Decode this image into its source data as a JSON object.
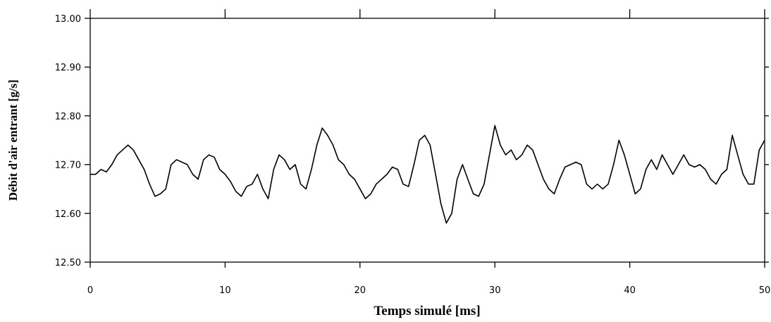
{
  "chart_data": {
    "type": "line",
    "title": "",
    "xlabel": "Temps simulé [ms]",
    "ylabel": "Débit d'air entrant [g/s]",
    "xlim": [
      0,
      50
    ],
    "ylim": [
      12.5,
      13.0
    ],
    "x_ticks": [
      "0",
      "10",
      "20",
      "30",
      "40",
      "50"
    ],
    "y_ticks": [
      "12.50",
      "12.60",
      "12.70",
      "12.80",
      "12.90",
      "13.00"
    ],
    "grid": false,
    "legend": "none",
    "line_color": "#000000",
    "series": [
      {
        "x": [
          0,
          0.4,
          0.8,
          1.2,
          1.6,
          2.0,
          2.4,
          2.8,
          3.2,
          3.6,
          4.0,
          4.4,
          4.8,
          5.2,
          5.6,
          6.0,
          6.4,
          6.8,
          7.2,
          7.6,
          8.0,
          8.4,
          8.8,
          9.2,
          9.6,
          10.0,
          10.4,
          10.8,
          11.2,
          11.6,
          12.0,
          12.4,
          12.8,
          13.2,
          13.6,
          14.0,
          14.4,
          14.8,
          15.2,
          15.6,
          16.0,
          16.4,
          16.8,
          17.2,
          17.6,
          18.0,
          18.4,
          18.8,
          19.2,
          19.6,
          20.0,
          20.4,
          20.8,
          21.2,
          21.6,
          22.0,
          22.4,
          22.8,
          23.2,
          23.6,
          24.0,
          24.4,
          24.8,
          25.2,
          25.6,
          26.0,
          26.4,
          26.8,
          27.2,
          27.6,
          28.0,
          28.4,
          28.8,
          29.2,
          29.6,
          30.0,
          30.4,
          30.8,
          31.2,
          31.6,
          32.0,
          32.4,
          32.8,
          33.2,
          33.6,
          34.0,
          34.4,
          34.8,
          35.2,
          35.6,
          36.0,
          36.4,
          36.8,
          37.2,
          37.6,
          38.0,
          38.4,
          38.8,
          39.2,
          39.6,
          40.0,
          40.4,
          40.8,
          41.2,
          41.6,
          42.0,
          42.4,
          42.8,
          43.2,
          43.6,
          44.0,
          44.4,
          44.8,
          45.2,
          45.6,
          46.0,
          46.4,
          46.8,
          47.2,
          47.6,
          48.0,
          48.4,
          48.8,
          49.2,
          49.6,
          50.0
        ],
        "values": [
          12.68,
          12.68,
          12.69,
          12.685,
          12.7,
          12.72,
          12.73,
          12.74,
          12.73,
          12.71,
          12.69,
          12.66,
          12.635,
          12.64,
          12.65,
          12.7,
          12.71,
          12.705,
          12.7,
          12.68,
          12.67,
          12.71,
          12.72,
          12.715,
          12.69,
          12.68,
          12.665,
          12.645,
          12.635,
          12.655,
          12.66,
          12.68,
          12.65,
          12.63,
          12.69,
          12.72,
          12.71,
          12.69,
          12.7,
          12.66,
          12.65,
          12.69,
          12.74,
          12.775,
          12.76,
          12.74,
          12.71,
          12.7,
          12.68,
          12.67,
          12.65,
          12.63,
          12.64,
          12.66,
          12.67,
          12.68,
          12.695,
          12.69,
          12.66,
          12.655,
          12.7,
          12.75,
          12.76,
          12.74,
          12.68,
          12.62,
          12.58,
          12.6,
          12.67,
          12.7,
          12.67,
          12.64,
          12.635,
          12.66,
          12.72,
          12.78,
          12.74,
          12.72,
          12.73,
          12.71,
          12.72,
          12.74,
          12.73,
          12.7,
          12.67,
          12.65,
          12.64,
          12.67,
          12.695,
          12.7,
          12.705,
          12.7,
          12.66,
          12.65,
          12.66,
          12.65,
          12.66,
          12.7,
          12.75,
          12.72,
          12.68,
          12.64,
          12.65,
          12.69,
          12.71,
          12.69,
          12.72,
          12.7,
          12.68,
          12.7,
          12.72,
          12.7,
          12.695,
          12.7,
          12.69,
          12.67,
          12.66,
          12.68,
          12.69,
          12.76,
          12.72,
          12.68,
          12.66,
          12.66,
          12.73,
          12.75
        ]
      }
    ]
  }
}
